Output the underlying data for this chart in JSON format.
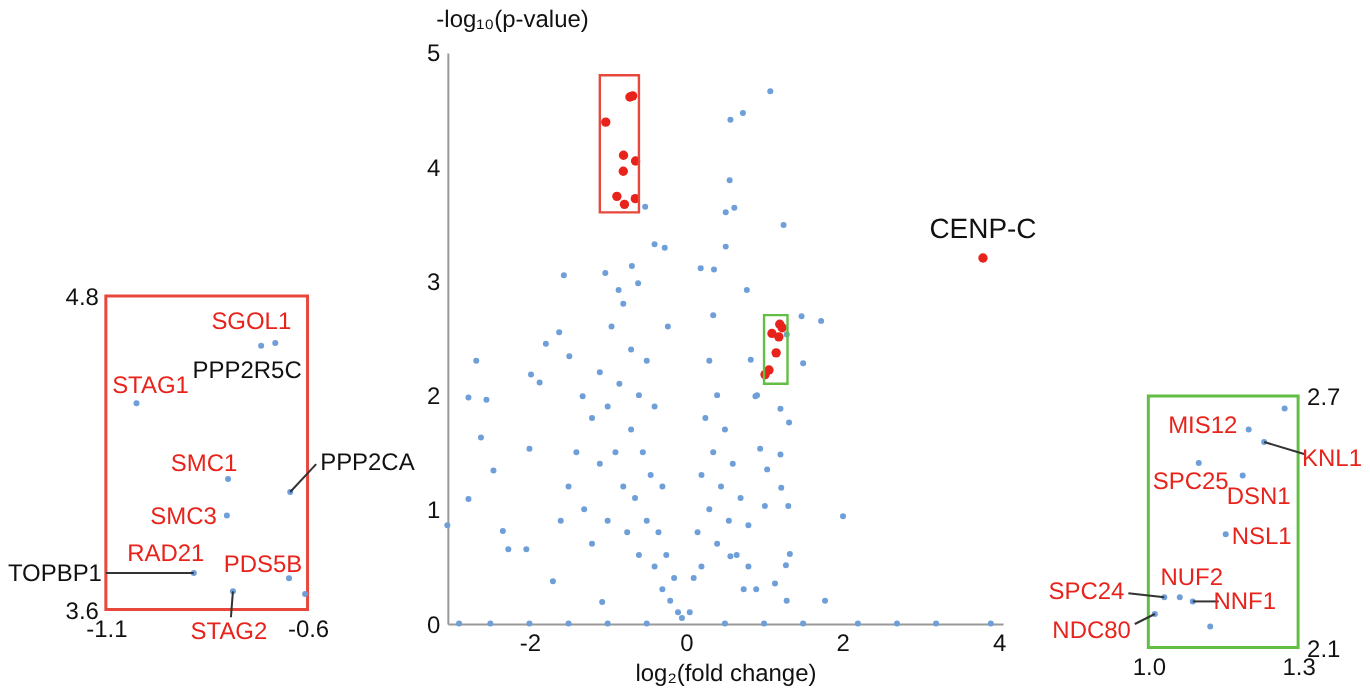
{
  "chart_data": [
    {
      "type": "scatter",
      "xlim": [
        -1.1,
        -0.6
      ],
      "ylim": [
        3.6,
        4.8
      ],
      "xticks": [
        -1.1,
        -0.6
      ],
      "yticks": [
        3.6,
        4.8
      ],
      "marker": "circle",
      "series": [
        {
          "color": "#6f9fd8",
          "x": [
            -0.68,
            -0.715,
            -1.024,
            -0.797,
            -0.643,
            -0.8,
            -0.882,
            -0.646,
            -0.785,
            -0.606
          ],
          "values": [
            4.62,
            4.61,
            4.39,
            4.1,
            4.05,
            3.96,
            3.74,
            3.72,
            3.67,
            3.66
          ]
        }
      ],
      "annotations": [
        {
          "text": "SGOL1",
          "x": -0.68,
          "y": 4.62
        },
        {
          "text": "PPP2R5C",
          "x": -0.715,
          "y": 4.61
        },
        {
          "text": "STAG1",
          "x": -1.024,
          "y": 4.39
        },
        {
          "text": "SMC1",
          "x": -0.797,
          "y": 4.1
        },
        {
          "text": "PPP2CA",
          "x": -0.643,
          "y": 4.05
        },
        {
          "text": "SMC3",
          "x": -0.8,
          "y": 3.96
        },
        {
          "text": "RAD21",
          "x": -0.882,
          "y": 3.74
        },
        {
          "text": "TOPBP1",
          "x": -0.882,
          "y": 3.74
        },
        {
          "text": "PDS5B",
          "x": -0.646,
          "y": 3.72
        },
        {
          "text": "STAG2",
          "x": -0.785,
          "y": 3.67
        }
      ]
    },
    {
      "type": "scatter",
      "xlabel": "log₂(fold change)",
      "ylabel": "-log₁₀(p-value)",
      "xlim": [
        -3.05,
        4.05
      ],
      "ylim": [
        0,
        5
      ],
      "xticks": [
        -2,
        0,
        2,
        4
      ],
      "yticks": [
        0,
        1,
        2,
        3,
        4,
        5
      ],
      "marker": "circle",
      "series": [
        {
          "color": "#6f9fd8",
          "x": [
            -3.05,
            -2.78,
            -2.78,
            -2.68,
            -2.55,
            -2.62,
            -2.46,
            -2.34,
            -2.27,
            -2.04,
            -2.0,
            -1.98,
            -1.87,
            -1.79,
            -1.7,
            -1.56,
            -1.62,
            -1.49,
            -1.32,
            -1.07,
            -1.03,
            -0.86,
            -0.69,
            -0.61,
            -0.52,
            -0.4,
            -0.27,
            -0.23,
            0.19,
            0.36,
            0.78,
            0.83,
            0.91,
            0.95,
            0.57,
            0.73,
            1.08,
            0.56,
            0.62,
            0.51,
            0.51,
            1.25,
            1.48,
            1.73,
            1.5,
            1.29,
            0.89,
            1.21,
            1.32,
            1.21,
            1.04,
            1.22,
            1.01,
            1.31,
            2.01,
            0.8,
            1.33,
            1.28,
            1.14,
            1.78,
            1.29,
            0.74,
            0.57,
            -1.6,
            -1.5,
            -1.4,
            -1.3,
            -1.2,
            -1.2,
            -1.1,
            -1.1,
            -1.0,
            -1.0,
            -0.95,
            -0.9,
            -0.85,
            -0.8,
            -0.8,
            -0.75,
            -0.7,
            -0.7,
            -0.65,
            -0.6,
            -0.6,
            -0.55,
            -0.5,
            -0.5,
            -0.45,
            -0.4,
            -0.4,
            -0.35,
            -0.3,
            -0.3,
            -0.25,
            -0.2,
            -0.15,
            -0.1,
            -0.05,
            0.05,
            0.1,
            0.15,
            0.2,
            0.2,
            0.25,
            0.3,
            0.3,
            0.35,
            0.35,
            0.4,
            0.4,
            0.45,
            0.5,
            0.55,
            0.6,
            0.65,
            0.7,
            0.8,
            0.9,
            -2.9,
            -2.5,
            -2.0,
            -1.5,
            -1.0,
            -0.5,
            0.5,
            1.0,
            1.5,
            2.2,
            2.7,
            3.2,
            3.9
          ],
          "values": [
            0.86,
            1.09,
            1.98,
            2.3,
            1.96,
            1.63,
            1.34,
            0.81,
            0.65,
            0.65,
            1.53,
            2.18,
            2.11,
            2.45,
            0.37,
            3.05,
            2.55,
            2.34,
            1.99,
            0.19,
            3.07,
            2.92,
            3.13,
            2.98,
            3.65,
            3.32,
            3.29,
            2.6,
            3.11,
            3.1,
            2.92,
            2.31,
            2.0,
            1.53,
            4.41,
            4.47,
            4.66,
            3.88,
            3.64,
            3.6,
            3.3,
            3.49,
            2.69,
            2.65,
            2.28,
            2.53,
            1.99,
            1.88,
            1.76,
            1.48,
            1.35,
            1.19,
            1.03,
            1.03,
            0.94,
            0.86,
            0.61,
            0.51,
            0.35,
            0.2,
            0.2,
            0.3,
            0.59,
            0.9,
            1.2,
            1.5,
            1.0,
            1.8,
            0.7,
            2.2,
            1.4,
            1.9,
            0.9,
            2.6,
            1.5,
            2.1,
            1.2,
            2.8,
            0.8,
            1.7,
            2.4,
            1.1,
            2.0,
            0.6,
            1.5,
            2.3,
            0.9,
            1.3,
            0.5,
            1.9,
            0.8,
            0.3,
            1.2,
            0.6,
            0.2,
            0.4,
            0.1,
            0.05,
            0.1,
            0.4,
            0.8,
            1.3,
            0.5,
            1.8,
            2.3,
            1.0,
            2.7,
            1.5,
            2.0,
            0.7,
            1.2,
            1.7,
            0.9,
            1.4,
            0.6,
            1.1,
            0.5,
            0.3,
            0,
            0,
            0,
            0,
            0,
            0,
            0,
            0,
            0,
            0,
            0,
            0,
            0
          ]
        },
        {
          "color": "#e8231b",
          "x": [
            -0.68,
            -0.715,
            -1.024,
            -0.797,
            -0.643,
            -0.8,
            -0.882,
            -0.646,
            -0.785,
            1.201,
            1.232,
            1.101,
            1.189,
            1.155,
            1.063,
            1.013,
            3.8
          ],
          "values": [
            4.62,
            4.61,
            4.39,
            4.1,
            4.05,
            3.96,
            3.74,
            3.72,
            3.67,
            2.62,
            2.59,
            2.54,
            2.51,
            2.37,
            2.22,
            2.18,
            3.2
          ]
        }
      ],
      "annotations": [
        {
          "text": "CENP-C",
          "x": 3.8,
          "y": 3.2
        }
      ]
    },
    {
      "type": "scatter",
      "xlim": [
        1.0,
        1.3
      ],
      "ylim": [
        2.1,
        2.7
      ],
      "xticks": [
        {
          "value": 1.0,
          "label": "1.0"
        },
        1.3
      ],
      "yticks": [
        2.1,
        2.7
      ],
      "marker": "circle",
      "series": [
        {
          "color": "#6f9fd8",
          "x": [
            1.273,
            1.201,
            1.232,
            1.101,
            1.189,
            1.155,
            1.063,
            1.032,
            1.089,
            1.013,
            1.124
          ],
          "values": [
            2.67,
            2.62,
            2.59,
            2.54,
            2.51,
            2.37,
            2.22,
            2.22,
            2.21,
            2.18,
            2.15
          ]
        }
      ],
      "annotations": [
        {
          "text": "MIS12",
          "x": 1.201,
          "y": 2.62
        },
        {
          "text": "KNL1",
          "x": 1.232,
          "y": 2.59
        },
        {
          "text": "SPC25",
          "x": 1.101,
          "y": 2.54
        },
        {
          "text": "DSN1",
          "x": 1.189,
          "y": 2.51
        },
        {
          "text": "NSL1",
          "x": 1.155,
          "y": 2.37
        },
        {
          "text": "NUF2",
          "x": 1.063,
          "y": 2.22
        },
        {
          "text": "SPC24",
          "x": 1.032,
          "y": 2.22
        },
        {
          "text": "NNF1",
          "x": 1.089,
          "y": 2.21
        },
        {
          "text": "NDC80",
          "x": 1.013,
          "y": 2.18
        }
      ]
    }
  ]
}
